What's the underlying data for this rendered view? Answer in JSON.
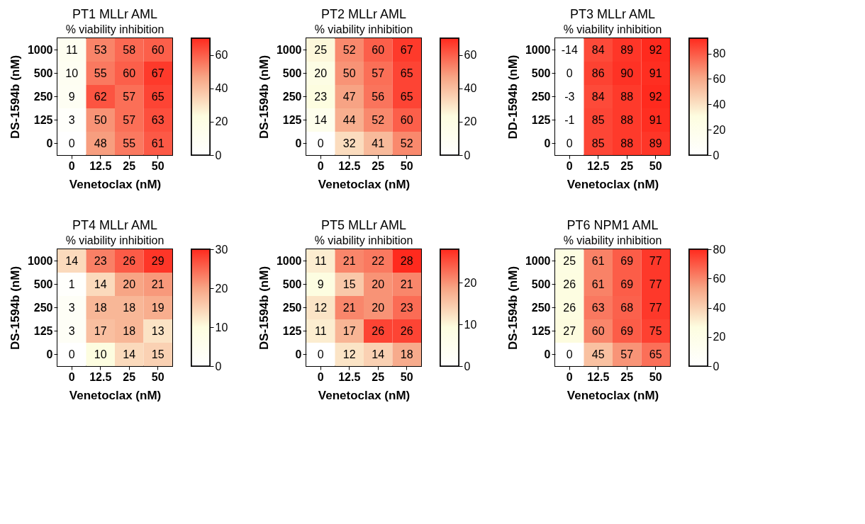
{
  "chart_data": [
    {
      "type": "heatmap",
      "title": "PT1 MLLr AML",
      "subtitle": "% viability inhibition",
      "xlabel": "Venetoclax (nM)",
      "ylabel": "DS-1594b (nM)",
      "categories": [
        "0",
        "12.5",
        "25",
        "50"
      ],
      "y_categories": [
        "1000",
        "500",
        "250",
        "125",
        "0"
      ],
      "cells": [
        [
          11,
          53,
          58,
          60
        ],
        [
          10,
          55,
          60,
          67
        ],
        [
          9,
          62,
          57,
          65
        ],
        [
          3,
          50,
          57,
          63
        ],
        [
          0,
          48,
          55,
          61
        ]
      ],
      "clim": [
        0,
        70
      ],
      "cticks": [
        0,
        20,
        40,
        60
      ],
      "data_labels": true
    },
    {
      "type": "heatmap",
      "title": "PT2 MLLr AML",
      "subtitle": "% viability inhibition",
      "xlabel": "Venetoclax (nM)",
      "ylabel": "DS-1594b (nM)",
      "categories": [
        "0",
        "12.5",
        "25",
        "50"
      ],
      "y_categories": [
        "1000",
        "500",
        "250",
        "125",
        "0"
      ],
      "cells": [
        [
          25,
          52,
          60,
          67
        ],
        [
          20,
          50,
          57,
          65
        ],
        [
          23,
          47,
          56,
          65
        ],
        [
          14,
          44,
          52,
          60
        ],
        [
          0,
          32,
          41,
          52
        ]
      ],
      "clim": [
        0,
        70
      ],
      "cticks": [
        0,
        20,
        40,
        60
      ],
      "data_labels": true
    },
    {
      "type": "heatmap",
      "title": "PT3 MLLr AML",
      "subtitle": "% viability inhibition",
      "xlabel": "Venetoclax (nM)",
      "ylabel": "DD-1594b (nM)",
      "categories": [
        "0",
        "12.5",
        "25",
        "50"
      ],
      "y_categories": [
        "1000",
        "500",
        "250",
        "125",
        "0"
      ],
      "cells": [
        [
          -14,
          84,
          89,
          92
        ],
        [
          0,
          86,
          90,
          91
        ],
        [
          -3,
          84,
          88,
          92
        ],
        [
          -1,
          85,
          88,
          91
        ],
        [
          0,
          85,
          88,
          89
        ]
      ],
      "clim": [
        0,
        92
      ],
      "cticks": [
        0,
        20,
        40,
        60,
        80
      ],
      "data_labels": true
    },
    {
      "type": "heatmap",
      "title": "PT4 MLLr AML",
      "subtitle": "% viability inhibition",
      "xlabel": "Venetoclax (nM)",
      "ylabel": "DS-1594b (nM)",
      "categories": [
        "0",
        "12.5",
        "25",
        "50"
      ],
      "y_categories": [
        "1000",
        "500",
        "250",
        "125",
        "0"
      ],
      "cells": [
        [
          14,
          23,
          26,
          29
        ],
        [
          1,
          14,
          20,
          21
        ],
        [
          3,
          18,
          18,
          19
        ],
        [
          3,
          17,
          18,
          13
        ],
        [
          0,
          10,
          14,
          15
        ]
      ],
      "clim": [
        0,
        30
      ],
      "cticks": [
        0,
        10,
        20,
        30
      ],
      "data_labels": true
    },
    {
      "type": "heatmap",
      "title": "PT5 MLLr AML",
      "subtitle": "% viability inhibition",
      "xlabel": "Venetoclax (nM)",
      "ylabel": "DS-1594b (nM)",
      "categories": [
        "0",
        "12.5",
        "25",
        "50"
      ],
      "y_categories": [
        "1000",
        "500",
        "250",
        "125",
        "0"
      ],
      "cells": [
        [
          11,
          21,
          22,
          28
        ],
        [
          9,
          15,
          20,
          21
        ],
        [
          12,
          21,
          20,
          23
        ],
        [
          11,
          17,
          26,
          26
        ],
        [
          0,
          12,
          14,
          18
        ]
      ],
      "clim": [
        0,
        28
      ],
      "cticks": [
        0,
        10,
        20
      ],
      "data_labels": true
    },
    {
      "type": "heatmap",
      "title": "PT6 NPM1 AML",
      "subtitle": "% viability inhibition",
      "xlabel": "Venetoclax (nM)",
      "ylabel": "DS-1594b (nM)",
      "categories": [
        "0",
        "12.5",
        "25",
        "50"
      ],
      "y_categories": [
        "1000",
        "500",
        "250",
        "125",
        "0"
      ],
      "cells": [
        [
          25,
          61,
          69,
          77
        ],
        [
          26,
          61,
          69,
          77
        ],
        [
          26,
          63,
          68,
          77
        ],
        [
          27,
          60,
          69,
          75
        ],
        [
          0,
          45,
          57,
          65
        ]
      ],
      "clim": [
        0,
        80
      ],
      "cticks": [
        0,
        20,
        40,
        60,
        80
      ],
      "data_labels": true
    }
  ]
}
